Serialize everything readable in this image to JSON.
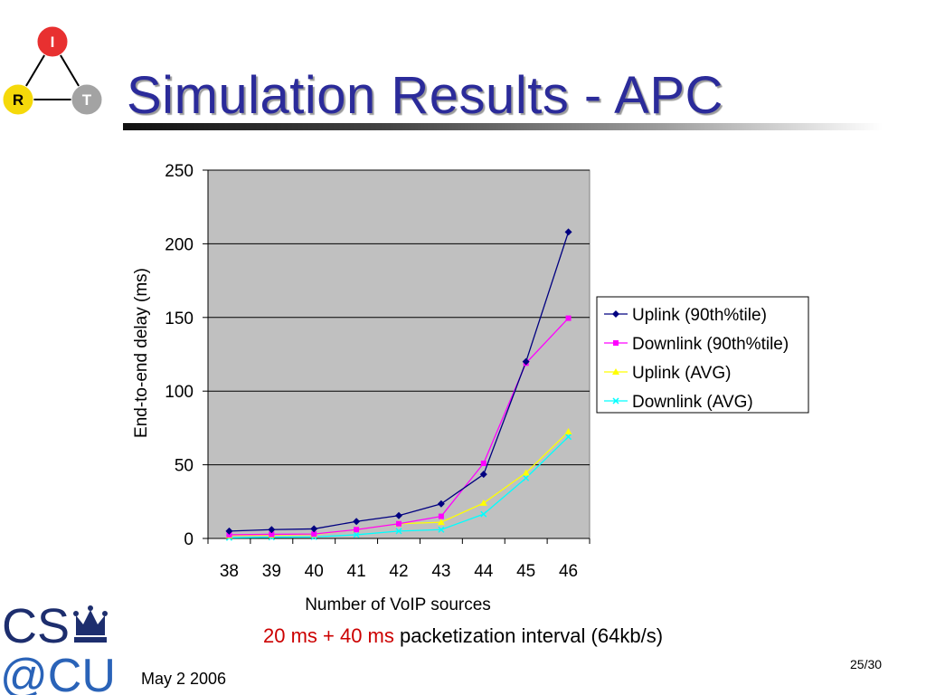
{
  "slide": {
    "title": "Simulation Results - APC",
    "caption_red": "20 ms + 40 ms",
    "caption_rest": " packetization interval (64kb/s)",
    "footer_date": "May 2 2006",
    "page_number": "25/30"
  },
  "logo_irt": {
    "top": "I",
    "left": "R",
    "right": "T",
    "icon": "irt-triangle-logo"
  },
  "logo_cs": {
    "line1": "CS",
    "line2": "@CU",
    "icon": "crown-icon"
  },
  "chart_data": {
    "type": "line",
    "title": "",
    "xlabel": "Number of VoIP sources",
    "ylabel": "End-to-end delay (ms)",
    "x": [
      38,
      39,
      40,
      41,
      42,
      43,
      44,
      45,
      46
    ],
    "ylim": [
      0,
      250
    ],
    "yticks": [
      0,
      50,
      100,
      150,
      200,
      250
    ],
    "grid": true,
    "legend_position": "right",
    "plot_background": "#c0c0c0",
    "series": [
      {
        "name": "Uplink (90th%tile)",
        "color": "#000080",
        "marker": "diamond",
        "values": [
          5,
          6,
          6.5,
          11.5,
          15.5,
          23.5,
          43.5,
          120,
          208
        ]
      },
      {
        "name": "Downlink (90th%tile)",
        "color": "#ff00ff",
        "marker": "square",
        "values": [
          2.5,
          2.8,
          3,
          6,
          10,
          15,
          51,
          119,
          149.5
        ]
      },
      {
        "name": "Uplink (AVG)",
        "color": "#ffff00",
        "marker": "triangle",
        "values": [
          2,
          2.3,
          2.7,
          6,
          10,
          11,
          24,
          44.5,
          72.5
        ]
      },
      {
        "name": "Downlink (AVG)",
        "color": "#00ffff",
        "marker": "x",
        "values": [
          0.5,
          0.8,
          1,
          2.5,
          5,
          6,
          16.5,
          41,
          69
        ]
      }
    ]
  }
}
